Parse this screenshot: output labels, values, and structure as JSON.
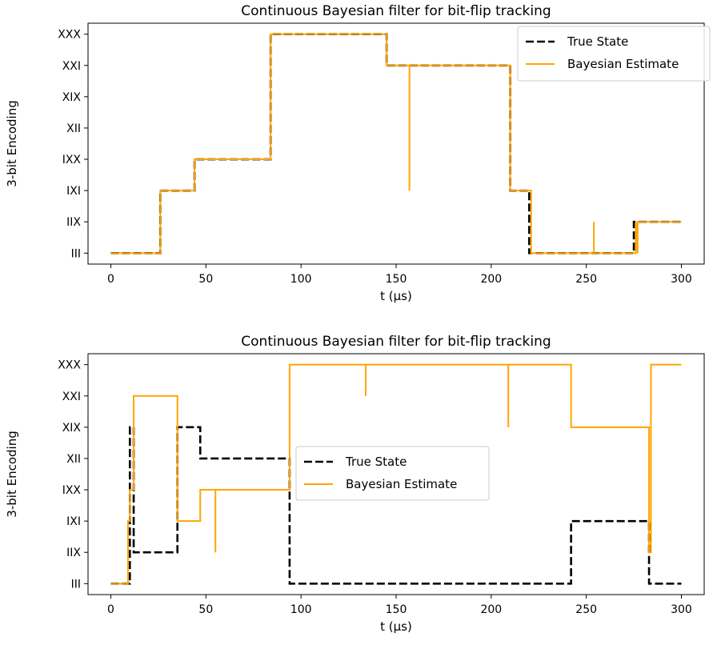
{
  "chart_data": [
    {
      "type": "line",
      "title": "Continuous Bayesian filter for bit-flip tracking",
      "xlabel": "t (µs)",
      "ylabel": "3-bit Encoding",
      "xlim": [
        -12,
        312
      ],
      "ylim": [
        -0.35,
        7.35
      ],
      "xticks": [
        0,
        50,
        100,
        150,
        200,
        250,
        300
      ],
      "yticks": [
        "III",
        "IIX",
        "IXI",
        "IXX",
        "XII",
        "XIX",
        "XXI",
        "XXX"
      ],
      "grid": false,
      "legend": {
        "placement": "upper-right"
      },
      "series": [
        {
          "name": "True State",
          "color": "#000000",
          "style": "dashed",
          "x": [
            0,
            26,
            26,
            44,
            44,
            84,
            84,
            145,
            145,
            210,
            210,
            220,
            220,
            275,
            275,
            300
          ],
          "y": [
            0,
            0,
            2,
            2,
            3,
            3,
            7,
            7,
            6,
            6,
            2,
            2,
            0,
            0,
            1,
            1
          ]
        },
        {
          "name": "Bayesian Estimate",
          "color": "#ffa500",
          "style": "solid",
          "x": [
            0,
            26,
            26,
            44,
            44,
            84,
            84,
            145,
            145,
            157,
            157,
            157,
            210,
            210,
            221,
            221,
            254,
            254,
            254,
            276,
            276,
            277,
            277,
            300
          ],
          "y": [
            0,
            0,
            2,
            2,
            3,
            3,
            7,
            7,
            6,
            6,
            2,
            6,
            6,
            2,
            2,
            0,
            0,
            1,
            0,
            0,
            1,
            0,
            1,
            1
          ]
        }
      ]
    },
    {
      "type": "line",
      "title": "Continuous Bayesian filter for bit-flip tracking",
      "xlabel": "t (µs)",
      "ylabel": "3-bit Encoding",
      "xlim": [
        -12,
        312
      ],
      "ylim": [
        -0.35,
        7.35
      ],
      "xticks": [
        0,
        50,
        100,
        150,
        200,
        250,
        300
      ],
      "yticks": [
        "III",
        "IIX",
        "IXI",
        "IXX",
        "XII",
        "XIX",
        "XXI",
        "XXX"
      ],
      "grid": false,
      "legend": {
        "placement": "center"
      },
      "series": [
        {
          "name": "True State",
          "color": "#000000",
          "style": "dashed",
          "x": [
            0,
            10,
            10,
            12,
            12,
            35,
            35,
            47,
            47,
            94,
            94,
            242,
            242,
            283,
            283,
            300
          ],
          "y": [
            0,
            0,
            5,
            5,
            1,
            1,
            5,
            5,
            4,
            4,
            0,
            0,
            2,
            2,
            0,
            0
          ]
        },
        {
          "name": "Bayesian Estimate",
          "color": "#ffa500",
          "style": "solid",
          "x": [
            0,
            9,
            9,
            10,
            10,
            12,
            12,
            35,
            35,
            47,
            47,
            55,
            55,
            55,
            94,
            94,
            134,
            134,
            134,
            209,
            209,
            209,
            242,
            242,
            283,
            283,
            284,
            284,
            300
          ],
          "y": [
            0,
            0,
            2,
            2,
            3,
            3,
            6,
            6,
            2,
            2,
            3,
            3,
            1,
            3,
            3,
            7,
            7,
            6,
            7,
            7,
            5,
            7,
            7,
            5,
            5,
            1,
            1,
            7,
            7
          ]
        }
      ]
    }
  ]
}
